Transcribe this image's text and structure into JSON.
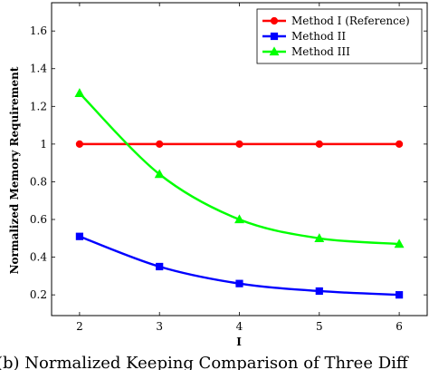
{
  "chart_data": {
    "type": "line",
    "x": [
      2,
      3,
      4,
      5,
      6
    ],
    "series": [
      {
        "name": "Method I (Reference)",
        "color": "#ff0000",
        "marker": "circle",
        "values": [
          1,
          1,
          1,
          1,
          1
        ]
      },
      {
        "name": "Method II",
        "color": "#0000ff",
        "marker": "square",
        "values": [
          0.51,
          0.35,
          0.26,
          0.22,
          0.2
        ]
      },
      {
        "name": "Method III",
        "color": "#00ff00",
        "marker": "triangle",
        "values": [
          1.27,
          0.84,
          0.6,
          0.5,
          0.47
        ]
      }
    ],
    "xlabel": "I",
    "ylabel": "Normalized Memory Requirement",
    "xlim": [
      1.65,
      6.35
    ],
    "ylim": [
      0.09,
      1.75
    ],
    "xticks": [
      "2",
      "3",
      "4",
      "5",
      "6"
    ],
    "yticks": [
      "0.2",
      "0.4",
      "0.6",
      "0.8",
      "1",
      "1.2",
      "1.4",
      "1.6"
    ],
    "ytick_values": [
      0.2,
      0.4,
      0.6,
      0.8,
      1,
      1.2,
      1.4,
      1.6
    ],
    "grid": false,
    "legend_position": "top-right"
  },
  "caption": "(b) Normalized Keeping Comparison of Three Diff"
}
